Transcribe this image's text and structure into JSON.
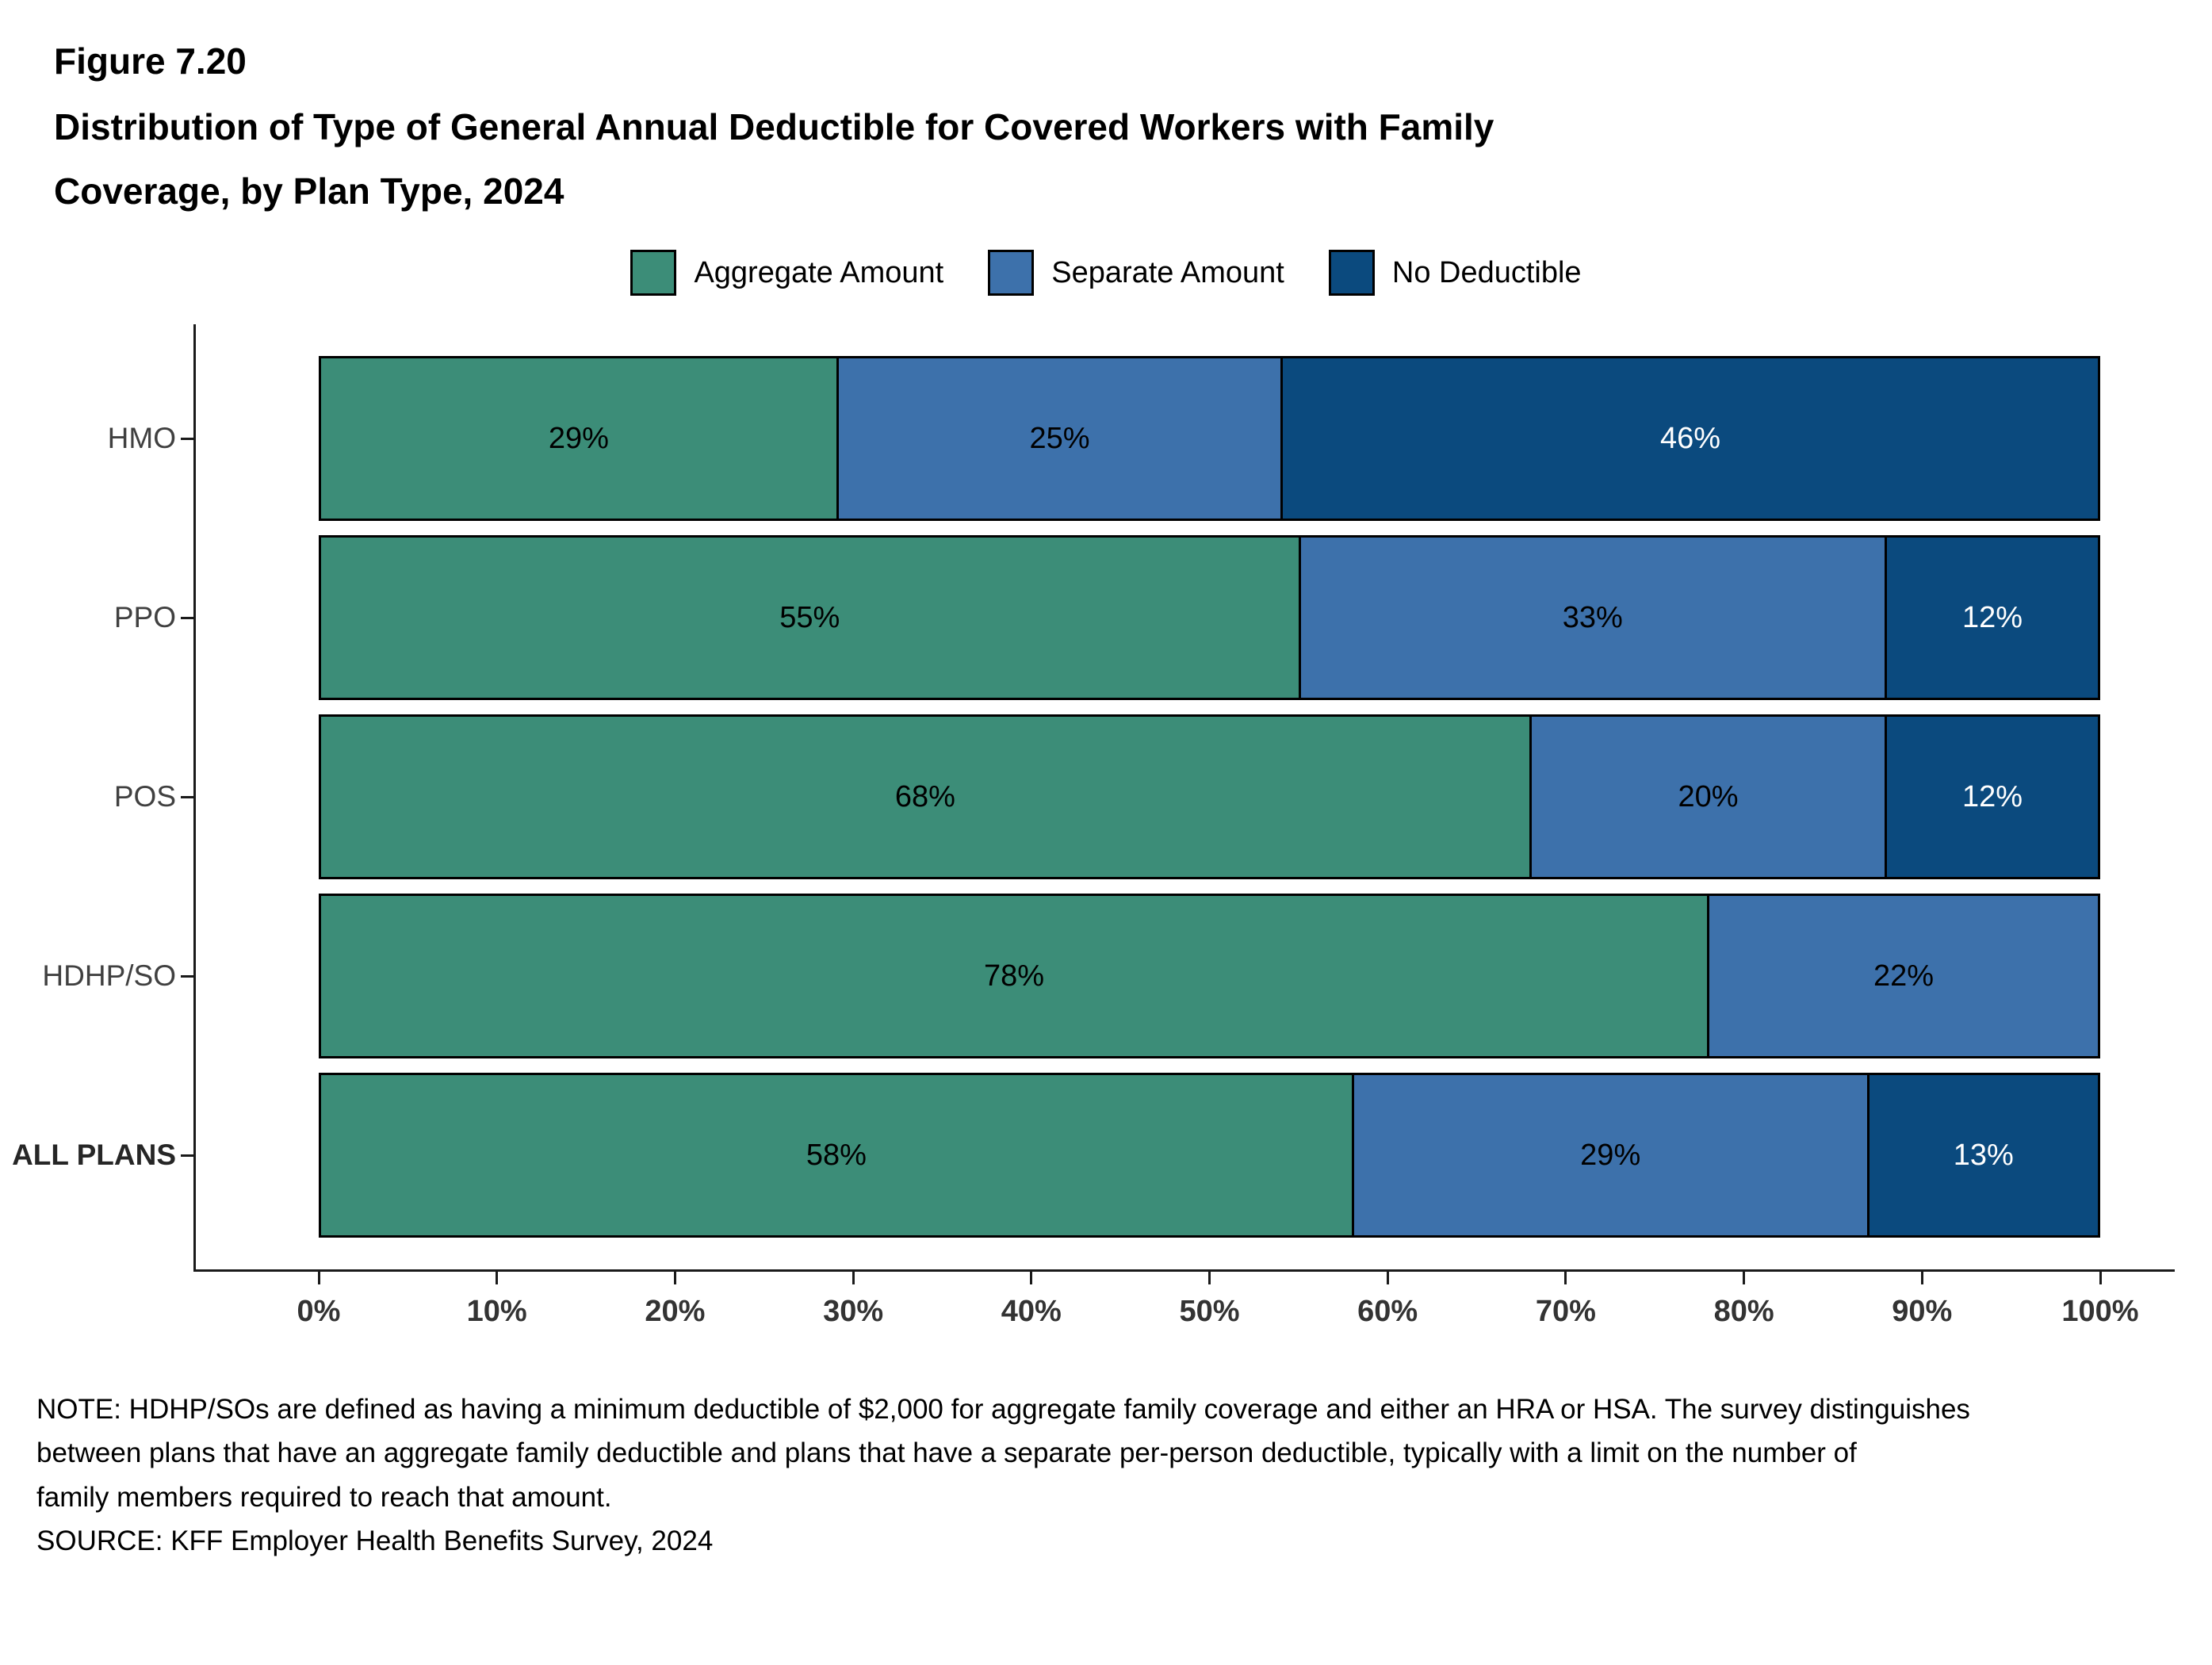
{
  "header": {
    "figure_label": "Figure 7.20",
    "title_line1": "Distribution of Type of General Annual Deductible for Covered Workers with Family",
    "title_line2": "Coverage, by Plan Type, 2024"
  },
  "chart_data": {
    "type": "bar",
    "orientation": "horizontal-stacked",
    "title": "Distribution of Type of General Annual Deductible for Covered Workers with Family Coverage, by Plan Type, 2024",
    "categories": [
      {
        "label": "HMO",
        "bold": false
      },
      {
        "label": "PPO",
        "bold": false
      },
      {
        "label": "POS",
        "bold": false
      },
      {
        "label": "HDHP/SO",
        "bold": false
      },
      {
        "label": "ALL PLANS",
        "bold": true
      }
    ],
    "series": [
      {
        "name": "Aggregate Amount",
        "color": "#3c8d78",
        "label_color": "#000000",
        "values": [
          29,
          55,
          68,
          78,
          58
        ]
      },
      {
        "name": "Separate Amount",
        "color": "#3d71ab",
        "label_color": "#000000",
        "values": [
          25,
          33,
          20,
          22,
          29
        ]
      },
      {
        "name": "No Deductible",
        "color": "#0b4a7e",
        "label_color": "#ffffff",
        "values": [
          46,
          12,
          12,
          0,
          13
        ]
      }
    ],
    "xlim": [
      0,
      100
    ],
    "x_ticks": [
      "0%",
      "10%",
      "20%",
      "30%",
      "40%",
      "50%",
      "60%",
      "70%",
      "80%",
      "90%",
      "100%"
    ],
    "value_suffix": "%",
    "legend_position": "top",
    "grid": false,
    "bar_border_color": "#000000"
  },
  "notes": {
    "lines": [
      "NOTE: HDHP/SOs are defined as having a minimum deductible of $2,000 for aggregate family coverage and either an HRA or HSA. The survey distinguishes",
      "between plans that have an aggregate family deductible and plans that have a separate per-person deductible, typically with a limit on the number of",
      "family members required to reach that amount."
    ],
    "source": "SOURCE: KFF Employer Health Benefits Survey, 2024"
  }
}
